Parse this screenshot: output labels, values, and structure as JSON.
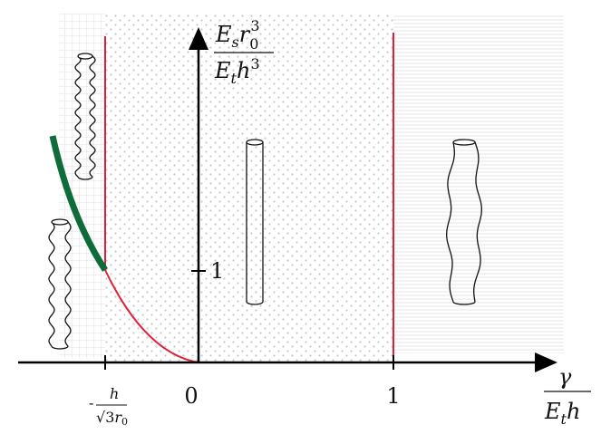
{
  "axes": {
    "y_label": {
      "numerator": [
        "E",
        "s",
        "r",
        "0",
        "3"
      ],
      "denominator": [
        "E",
        "t",
        "h",
        "3"
      ]
    },
    "x_label": {
      "numerator": "γ",
      "denominator": [
        "E",
        "t",
        "h"
      ]
    }
  },
  "ticks": {
    "x": [
      "0",
      "1"
    ],
    "x_special_sign": "-",
    "x_special": {
      "numerator": "h",
      "denominator": [
        "√3",
        "r",
        "0"
      ]
    },
    "y": "1"
  }
}
